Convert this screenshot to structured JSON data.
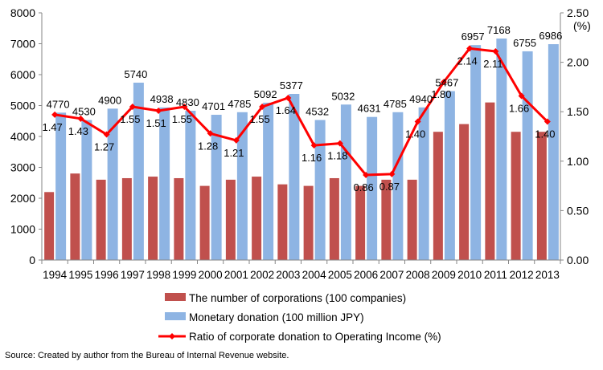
{
  "chart_data": {
    "type": "bar",
    "categories": [
      "1994",
      "1995",
      "1996",
      "1997",
      "1998",
      "1999",
      "2000",
      "2001",
      "2002",
      "2003",
      "2004",
      "2005",
      "2006",
      "2007",
      "2008",
      "2009",
      "2010",
      "2011",
      "2012",
      "2013"
    ],
    "series": [
      {
        "name": "The number of corporations (100 companies)",
        "type": "bar",
        "axis": "left",
        "color": "#C0504D",
        "values": [
          2200,
          2800,
          2600,
          2650,
          2700,
          2650,
          2400,
          2600,
          2700,
          2450,
          2400,
          2650,
          2400,
          2600,
          2600,
          4150,
          4400,
          5100,
          4150,
          4150
        ]
      },
      {
        "name": "Monetary donation (100 million JPY)",
        "type": "bar",
        "axis": "left",
        "color": "#8EB4E3",
        "values": [
          4770,
          4530,
          4900,
          5740,
          4938,
          4830,
          4701,
          4785,
          5092,
          5377,
          4532,
          5032,
          4631,
          4785,
          4940,
          5467,
          6957,
          7168,
          6755,
          6986
        ],
        "labels": [
          "4770",
          "4530",
          "4900",
          "5740",
          "4938",
          "4830",
          "4701",
          "4785",
          "5092",
          "5377",
          "4532",
          "5032",
          "4631",
          "4785",
          "4940",
          "5467",
          "6957",
          "7168",
          "6755",
          "6986"
        ]
      },
      {
        "name": "Ratio of corporate donation to Operating Income (%)",
        "type": "line",
        "axis": "right",
        "color": "#FF0000",
        "values": [
          1.47,
          1.43,
          1.27,
          1.55,
          1.51,
          1.55,
          1.28,
          1.21,
          1.55,
          1.64,
          1.16,
          1.18,
          0.86,
          0.87,
          1.4,
          1.8,
          2.14,
          2.11,
          1.66,
          1.4
        ],
        "labels": [
          "1.47",
          "1.43",
          "1.27",
          "1.55",
          "1.51",
          "1.55",
          "1.28",
          "1.21",
          "1.55",
          "1.64",
          "1.16",
          "1.18",
          "0.86",
          "0.87",
          "1.40",
          "1.80",
          "2.14",
          "2.11",
          "1.66",
          "1.40"
        ]
      }
    ],
    "ylim": [
      0,
      8000
    ],
    "y_ticks": [
      "0",
      "1000",
      "2000",
      "3000",
      "4000",
      "5000",
      "6000",
      "7000",
      "8000"
    ],
    "y2lim": [
      0,
      2.5
    ],
    "y2_ticks": [
      "0.00",
      "0.50",
      "1.00",
      "1.50",
      "2.00",
      "2.50"
    ],
    "y2_unit": "(%)",
    "grid": false,
    "legend_position": "bottom"
  },
  "source_note": "Source: Created by author from the Bureau of Internal Revenue website."
}
